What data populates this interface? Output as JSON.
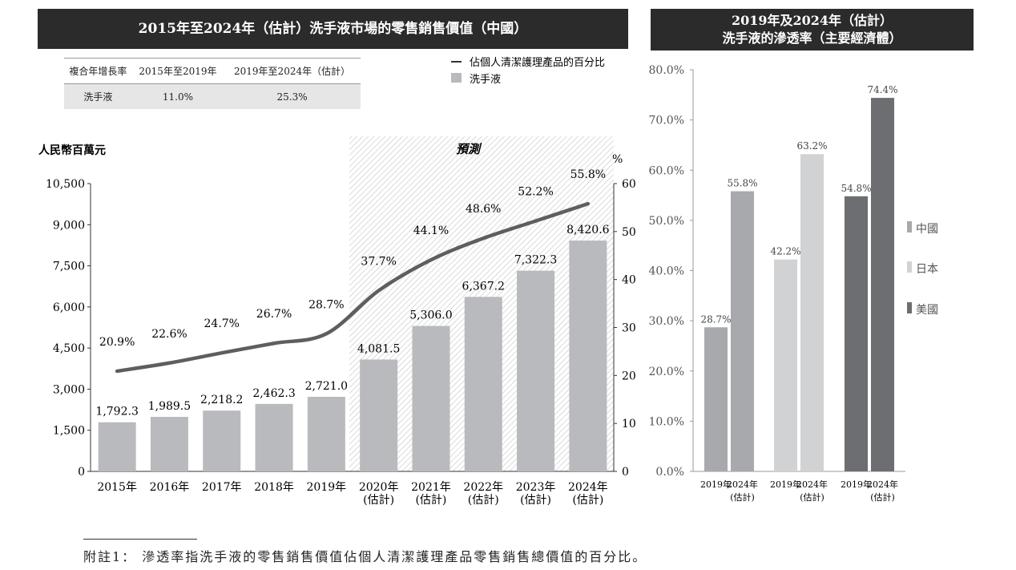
{
  "left_chart": {
    "title": "2015年至2024年（估計）洗手液市場的零售銷售價值（中國）",
    "cagr_table": {
      "headers": [
        "複合年增長率",
        "2015年至2019年",
        "2019年至2024年（估計）"
      ],
      "row": [
        "洗手液",
        "11.0%",
        "25.3%"
      ]
    },
    "legend": {
      "line": "佔個人清潔護理產品的百分比",
      "bar": "洗手液"
    },
    "ylabel_left": "人民幣百萬元",
    "ylabel_right": "%",
    "forecast_label": "預測"
  },
  "right_chart": {
    "title_line1": "2019年及2024年（估計）",
    "title_line2": "洗手液的滲透率（主要經濟體）"
  },
  "footnote": "附註1： 滲透率指洗手液的零售銷售價值佔個人清潔護理產品零售銷售總價值的百分比。",
  "colors": {
    "bar": "#b9babd",
    "line": "#5d5e62",
    "header_bg": "#2b2b2b",
    "china": "#a7a9ac",
    "japan": "#d1d2d4",
    "usa": "#6d6e71"
  },
  "chart_data": [
    {
      "type": "bar",
      "title": "2015年至2024年（估計）洗手液市場的零售銷售價值（中國）",
      "categories": [
        "2015年",
        "2016年",
        "2017年",
        "2018年",
        "2019年",
        "2020年|(估計)",
        "2021年|(估計)",
        "2022年|(估計)",
        "2023年|(估計)",
        "2024年|(估計)"
      ],
      "series": [
        {
          "name": "洗手液",
          "type": "bar",
          "axis": "left",
          "values": [
            1792.3,
            1989.5,
            2218.2,
            2462.3,
            2721.0,
            4081.5,
            5306.0,
            6367.2,
            7322.3,
            8420.6
          ],
          "labels": [
            "1,792.3",
            "1,989.5",
            "2,218.2",
            "2,462.3",
            "2,721.0",
            "4,081.5",
            "5,306.0",
            "6,367.2",
            "7,322.3",
            "8,420.6"
          ]
        },
        {
          "name": "佔個人清潔護理產品的百分比",
          "type": "line",
          "axis": "right",
          "values": [
            20.9,
            22.6,
            24.7,
            26.7,
            28.7,
            37.7,
            44.1,
            48.6,
            52.2,
            55.8
          ],
          "labels": [
            "20.9%",
            "22.6%",
            "24.7%",
            "26.7%",
            "28.7%",
            "37.7%",
            "44.1%",
            "48.6%",
            "52.2%",
            "55.8%"
          ]
        }
      ],
      "ylim": [
        0,
        10500
      ],
      "yticks": [
        "0",
        "1,500",
        "3,000",
        "4,500",
        "6,000",
        "7,500",
        "9,000",
        "10,500"
      ],
      "ylim_right": [
        0,
        60
      ],
      "yticks_right": [
        "0",
        "10",
        "20",
        "30",
        "40",
        "50",
        "60"
      ],
      "ylabel": "人民幣百萬元",
      "ylabel_right": "%",
      "forecast_start_index": 5
    },
    {
      "type": "bar",
      "title": "2019年及2024年（估計）洗手液的滲透率（主要經濟體）",
      "groups": [
        {
          "name": "中國",
          "categories": [
            "2019年",
            "2024年|(估計)"
          ],
          "values": [
            28.7,
            55.8
          ],
          "labels": [
            "28.7%",
            "55.8%"
          ]
        },
        {
          "name": "日本",
          "categories": [
            "2019年",
            "2024年|(估計)"
          ],
          "values": [
            42.2,
            63.2
          ],
          "labels": [
            "42.2%",
            "63.2%"
          ]
        },
        {
          "name": "美國",
          "categories": [
            "2019年",
            "2024年|(估計)"
          ],
          "values": [
            54.8,
            74.4
          ],
          "labels": [
            "54.8%",
            "74.4%"
          ]
        }
      ],
      "ylim": [
        0,
        80
      ],
      "yticks": [
        "0.0%",
        "10.0%",
        "20.0%",
        "30.0%",
        "40.0%",
        "50.0%",
        "60.0%",
        "70.0%",
        "80.0%"
      ],
      "legend": [
        "中國",
        "日本",
        "美國"
      ]
    }
  ]
}
